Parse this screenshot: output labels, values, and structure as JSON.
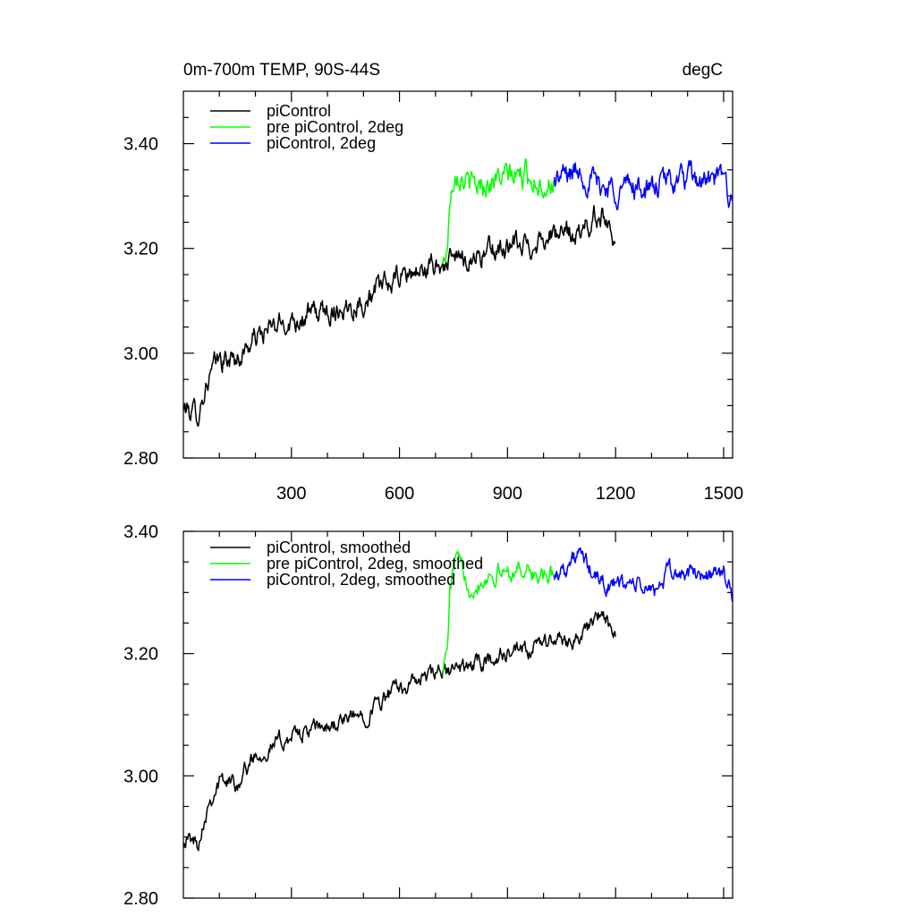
{
  "chart_data": [
    {
      "type": "line",
      "title": "0m-700m TEMP, 90S-44S",
      "units": "degC",
      "xlim": [
        0,
        1525
      ],
      "ylim": [
        2.8,
        3.5
      ],
      "x_ticks": [
        300,
        600,
        900,
        1200,
        1500
      ],
      "x_tick_labels": [
        "300",
        "600",
        "900",
        "1200",
        "1500"
      ],
      "y_ticks": [
        2.8,
        3.0,
        3.2,
        3.4
      ],
      "y_tick_labels": [
        "2.80",
        "3.00",
        "3.20",
        "3.40"
      ],
      "legend_position": "top-left",
      "series": [
        {
          "name": "piControl",
          "color": "#000000",
          "x_start": 0,
          "x_end": 1200,
          "trend_anchors": [
            [
              0,
              2.895
            ],
            [
              40,
              2.885
            ],
            [
              70,
              2.955
            ],
            [
              100,
              2.985
            ],
            [
              150,
              2.99
            ],
            [
              200,
              3.03
            ],
            [
              300,
              3.065
            ],
            [
              400,
              3.08
            ],
            [
              500,
              3.1
            ],
            [
              600,
              3.145
            ],
            [
              700,
              3.165
            ],
            [
              800,
              3.185
            ],
            [
              900,
              3.2
            ],
            [
              960,
              3.205
            ],
            [
              1000,
              3.225
            ],
            [
              1100,
              3.225
            ],
            [
              1160,
              3.27
            ],
            [
              1200,
              3.225
            ]
          ],
          "noise_amplitude": 0.016
        },
        {
          "name": "pre piControl, 2deg",
          "color": "#00ff00",
          "x_start": 720,
          "x_end": 1030,
          "trend_anchors": [
            [
              720,
              3.165
            ],
            [
              735,
              3.215
            ],
            [
              740,
              3.3
            ],
            [
              755,
              3.36
            ],
            [
              800,
              3.315
            ],
            [
              850,
              3.33
            ],
            [
              900,
              3.335
            ],
            [
              950,
              3.34
            ],
            [
              1000,
              3.325
            ],
            [
              1030,
              3.33
            ]
          ],
          "noise_amplitude": 0.018
        },
        {
          "name": "piControl, 2deg",
          "color": "#0000ff",
          "x_start": 1030,
          "x_end": 1525,
          "trend_anchors": [
            [
              1030,
              3.33
            ],
            [
              1100,
              3.35
            ],
            [
              1150,
              3.32
            ],
            [
              1200,
              3.315
            ],
            [
              1250,
              3.32
            ],
            [
              1300,
              3.31
            ],
            [
              1350,
              3.33
            ],
            [
              1400,
              3.33
            ],
            [
              1450,
              3.325
            ],
            [
              1500,
              3.33
            ],
            [
              1525,
              3.29
            ]
          ],
          "noise_amplitude": 0.018
        }
      ]
    },
    {
      "type": "line",
      "title": "",
      "xlim": [
        0,
        1525
      ],
      "ylim": [
        2.8,
        3.4
      ],
      "x_ticks": [
        300,
        600,
        900,
        1200,
        1500
      ],
      "x_tick_labels": [],
      "y_ticks": [
        2.8,
        3.0,
        3.2,
        3.4
      ],
      "y_tick_labels": [
        "2.80",
        "3.00",
        "3.20",
        "3.40"
      ],
      "legend_position": "top-left",
      "series": [
        {
          "name": "piControl, smoothed",
          "color": "#000000",
          "x_start": 0,
          "x_end": 1200,
          "trend_anchors": [
            [
              0,
              2.9
            ],
            [
              40,
              2.89
            ],
            [
              70,
              2.96
            ],
            [
              100,
              2.99
            ],
            [
              150,
              2.99
            ],
            [
              200,
              3.035
            ],
            [
              300,
              3.065
            ],
            [
              400,
              3.08
            ],
            [
              500,
              3.1
            ],
            [
              600,
              3.145
            ],
            [
              700,
              3.165
            ],
            [
              800,
              3.18
            ],
            [
              900,
              3.2
            ],
            [
              960,
              3.2
            ],
            [
              1000,
              3.22
            ],
            [
              1100,
              3.225
            ],
            [
              1160,
              3.265
            ],
            [
              1200,
              3.225
            ]
          ],
          "noise_amplitude": 0.01
        },
        {
          "name": "pre piControl, 2deg, smoothed",
          "color": "#00ff00",
          "x_start": 720,
          "x_end": 1030,
          "trend_anchors": [
            [
              720,
              3.175
            ],
            [
              735,
              3.22
            ],
            [
              740,
              3.3
            ],
            [
              755,
              3.355
            ],
            [
              800,
              3.31
            ],
            [
              850,
              3.33
            ],
            [
              900,
              3.335
            ],
            [
              950,
              3.34
            ],
            [
              1000,
              3.32
            ],
            [
              1030,
              3.33
            ]
          ],
          "noise_amplitude": 0.011
        },
        {
          "name": "piControl, 2deg, smoothed",
          "color": "#0000ff",
          "x_start": 1030,
          "x_end": 1525,
          "trend_anchors": [
            [
              1030,
              3.33
            ],
            [
              1100,
              3.36
            ],
            [
              1150,
              3.32
            ],
            [
              1200,
              3.31
            ],
            [
              1250,
              3.315
            ],
            [
              1300,
              3.3
            ],
            [
              1350,
              3.33
            ],
            [
              1400,
              3.33
            ],
            [
              1450,
              3.33
            ],
            [
              1500,
              3.33
            ],
            [
              1525,
              3.29
            ]
          ],
          "noise_amplitude": 0.011
        }
      ]
    }
  ]
}
